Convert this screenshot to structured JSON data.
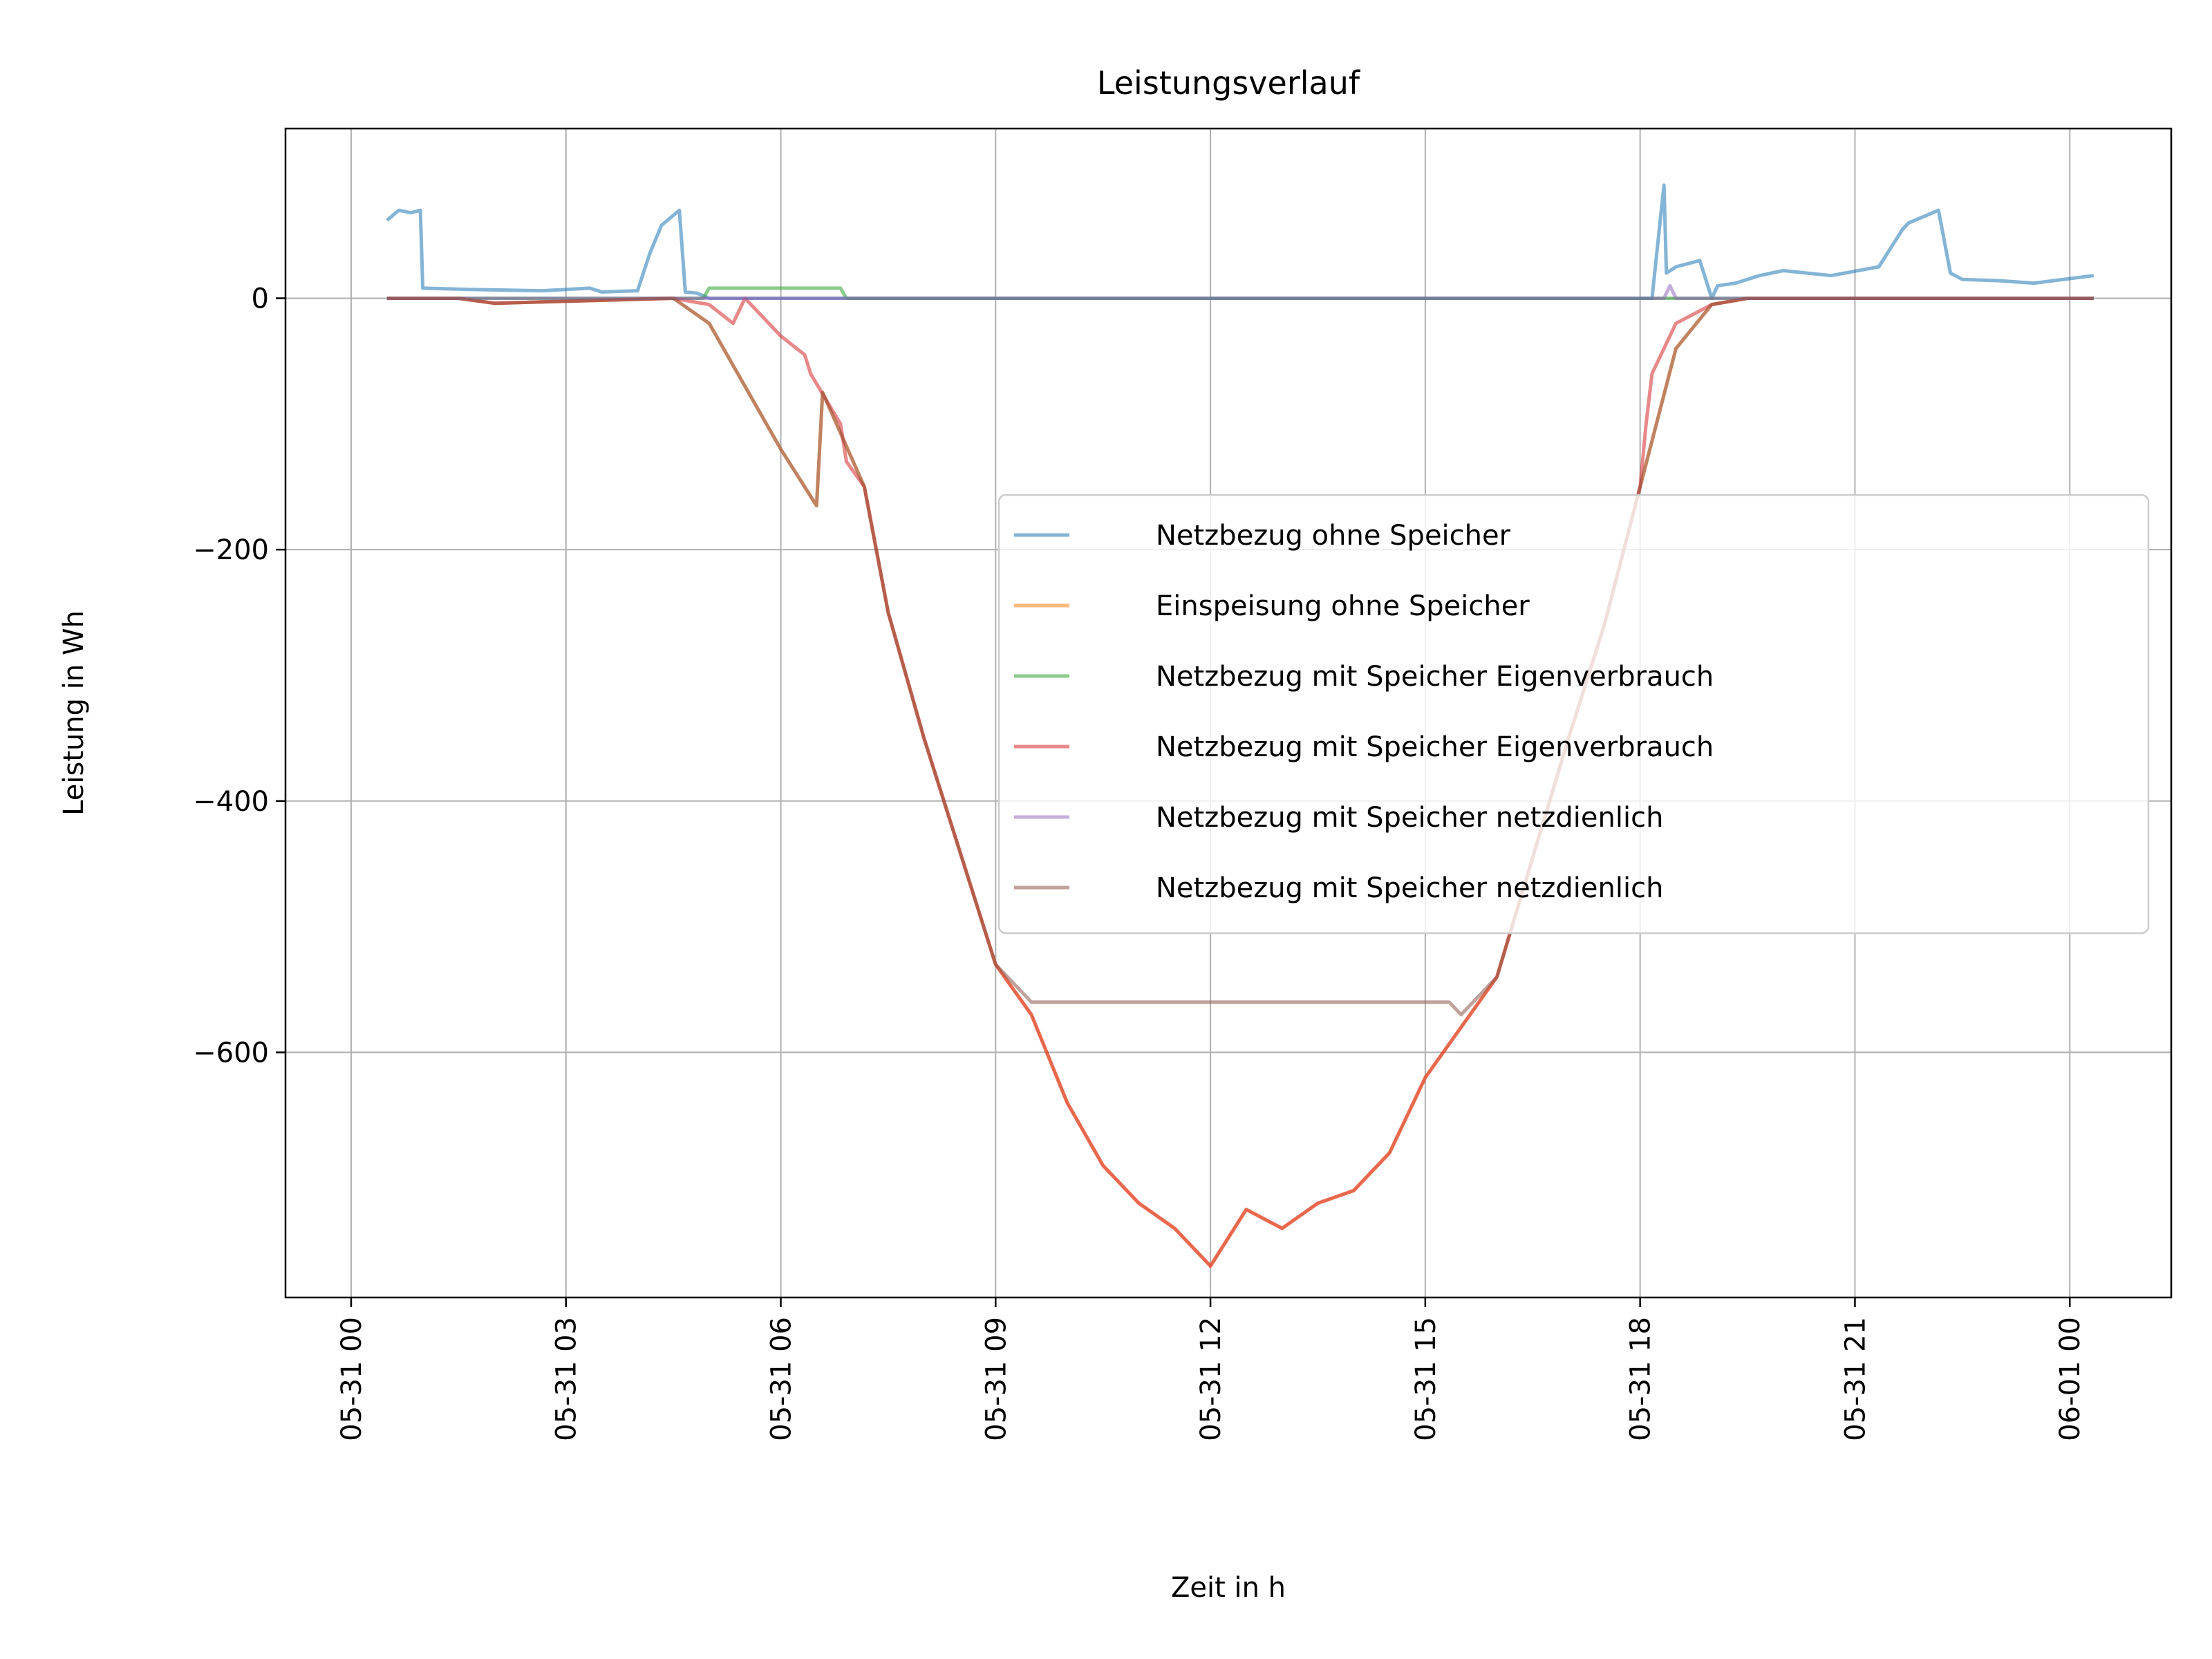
{
  "chart_data": {
    "type": "line",
    "title": "Leistungsverlauf",
    "xlabel": "Zeit in h",
    "ylabel": "Leistung in Wh",
    "xlim": [
      "05-30 23:05",
      "06-01 01:25"
    ],
    "ylim": [
      -795,
      135
    ],
    "x_ticks": [
      "05-31 00",
      "05-31 03",
      "05-31 06",
      "05-31 09",
      "05-31 12",
      "05-31 15",
      "05-31 18",
      "05-31 21",
      "06-01 00"
    ],
    "y_ticks": [
      "0",
      "−200",
      "−400",
      "−600"
    ],
    "y_tick_values": [
      0,
      -200,
      -400,
      -600
    ],
    "grid": true,
    "legend_position": "center-right",
    "series": [
      {
        "name": "Netzbezug ohne Speicher",
        "color": "#1f77b4",
        "x": [
          "05-31 00:30",
          "05-31 00:40",
          "05-31 00:50",
          "05-31 00:58",
          "05-31 01:00",
          "05-31 01:40",
          "05-31 02:40",
          "05-31 03:20",
          "05-31 03:30",
          "05-31 04:00",
          "05-31 04:10",
          "05-31 04:20",
          "05-31 04:35",
          "05-31 04:40",
          "05-31 04:50",
          "05-31 05:00",
          "05-31 12:00",
          "05-31 18:00",
          "05-31 18:10",
          "05-31 18:20",
          "05-31 18:22",
          "05-31 18:30",
          "05-31 18:50",
          "05-31 19:00",
          "05-31 19:05",
          "05-31 19:20",
          "05-31 19:40",
          "05-31 20:00",
          "05-31 20:40",
          "05-31 21:20",
          "05-31 21:40",
          "05-31 21:45",
          "05-31 22:10",
          "05-31 22:20",
          "05-31 22:30",
          "05-31 23:00",
          "05-31 23:30",
          "06-01 00:20"
        ],
        "y": [
          62,
          70,
          68,
          70,
          8,
          7,
          6,
          8,
          5,
          6,
          35,
          58,
          70,
          5,
          4,
          0,
          0,
          0,
          0,
          90,
          20,
          25,
          30,
          0,
          10,
          12,
          18,
          22,
          18,
          25,
          55,
          60,
          70,
          20,
          15,
          14,
          12,
          18
        ]
      },
      {
        "name": "Einspeisung ohne Speicher",
        "color": "#ff7f0e",
        "x": [
          "05-31 00:30",
          "05-31 01:30",
          "05-31 02:00",
          "05-31 04:30",
          "05-31 05:00",
          "05-31 05:30",
          "05-31 06:00",
          "05-31 06:30",
          "05-31 06:35",
          "05-31 07:10",
          "05-31 07:30",
          "05-31 08:00",
          "05-31 09:00",
          "05-31 09:30",
          "05-31 10:00",
          "05-31 10:30",
          "05-31 11:00",
          "05-31 11:30",
          "05-31 12:00",
          "05-31 12:30",
          "05-31 13:00",
          "05-31 13:30",
          "05-31 14:00",
          "05-31 14:30",
          "05-31 15:00",
          "05-31 15:30",
          "05-31 16:00",
          "05-31 17:00",
          "05-31 17:30",
          "05-31 18:00",
          "05-31 18:30",
          "05-31 19:00",
          "05-31 19:30",
          "05-31 21:00",
          "06-01 00:20"
        ],
        "y": [
          0,
          0,
          -4,
          0,
          -20,
          -70,
          -120,
          -165,
          -75,
          -150,
          -250,
          -350,
          -530,
          -570,
          -640,
          -690,
          -720,
          -740,
          -770,
          -725,
          -740,
          -720,
          -710,
          -680,
          -620,
          -580,
          -540,
          -350,
          -260,
          -150,
          -40,
          -5,
          0,
          0,
          0
        ]
      },
      {
        "name": "Netzbezug mit Speicher Eigenverbrauch",
        "color": "#2ca02c",
        "x": [
          "05-31 00:30",
          "05-31 04:55",
          "05-31 05:00",
          "05-31 06:50",
          "05-31 06:55",
          "06-01 00:20"
        ],
        "y": [
          0,
          0,
          8,
          8,
          0,
          0
        ]
      },
      {
        "name": "Netzbezug mit Speicher Eigenverbrauch",
        "color": "#d62728",
        "x": [
          "05-31 00:30",
          "05-31 01:30",
          "05-31 02:00",
          "05-31 04:30",
          "05-31 05:00",
          "05-31 05:20",
          "05-31 05:30",
          "05-31 06:00",
          "05-31 06:20",
          "05-31 06:25",
          "05-31 06:50",
          "05-31 06:55",
          "05-31 07:10",
          "05-31 07:30",
          "05-31 08:00",
          "05-31 09:00",
          "05-31 09:30",
          "05-31 10:00",
          "05-31 10:30",
          "05-31 11:00",
          "05-31 11:30",
          "05-31 12:00",
          "05-31 12:30",
          "05-31 13:00",
          "05-31 13:30",
          "05-31 14:00",
          "05-31 14:30",
          "05-31 15:00",
          "05-31 15:30",
          "05-31 16:00",
          "05-31 17:00",
          "05-31 17:30",
          "05-31 18:00",
          "05-31 18:05",
          "05-31 18:10",
          "05-31 18:30",
          "05-31 19:00",
          "05-31 19:30",
          "05-31 21:00",
          "06-01 00:20"
        ],
        "y": [
          0,
          0,
          -4,
          0,
          -5,
          -20,
          0,
          -30,
          -45,
          -60,
          -100,
          -130,
          -150,
          -250,
          -350,
          -530,
          -570,
          -640,
          -690,
          -720,
          -740,
          -770,
          -725,
          -740,
          -720,
          -710,
          -680,
          -620,
          -580,
          -540,
          -350,
          -260,
          -150,
          -100,
          -60,
          -20,
          -5,
          0,
          0,
          0
        ]
      },
      {
        "name": "Netzbezug mit Speicher netzdienlich",
        "color": "#9467bd",
        "x": [
          "05-31 00:30",
          "05-31 18:20",
          "05-31 18:25",
          "05-31 18:30",
          "06-01 00:20"
        ],
        "y": [
          0,
          0,
          10,
          0,
          0
        ]
      },
      {
        "name": "Netzbezug mit Speicher netzdienlich",
        "color": "#8c564b",
        "x": [
          "05-31 00:30",
          "05-31 01:30",
          "05-31 02:00",
          "05-31 04:30",
          "05-31 05:00",
          "05-31 05:30",
          "05-31 06:00",
          "05-31 06:30",
          "05-31 06:35",
          "05-31 07:10",
          "05-31 07:30",
          "05-31 08:00",
          "05-31 09:00",
          "05-31 09:30",
          "05-31 15:20",
          "05-31 15:30",
          "05-31 16:00",
          "05-31 17:00",
          "05-31 17:30",
          "05-31 18:00",
          "05-31 18:30",
          "05-31 19:00",
          "05-31 19:30",
          "05-31 21:00",
          "06-01 00:20"
        ],
        "y": [
          0,
          0,
          -4,
          0,
          -20,
          -70,
          -120,
          -165,
          -75,
          -150,
          -250,
          -350,
          -530,
          -560,
          -560,
          -570,
          -540,
          -350,
          -260,
          -150,
          -40,
          -5,
          0,
          0,
          0
        ]
      }
    ]
  }
}
